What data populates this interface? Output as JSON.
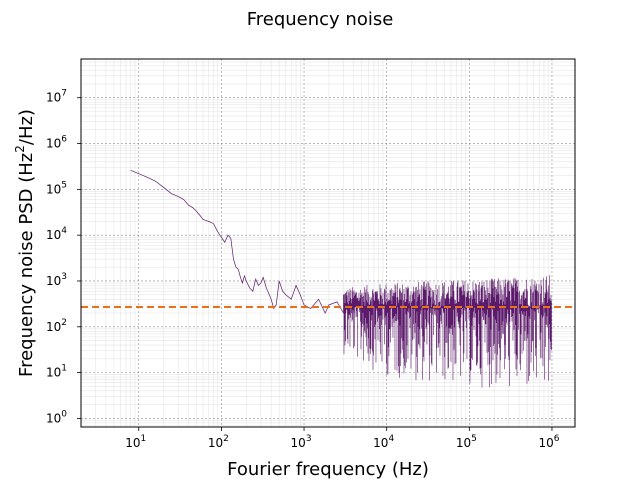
{
  "chart_data": {
    "type": "line",
    "title": "Frequency noise",
    "xlabel": "Fourier frequency (Hz)",
    "ylabel_main": "Frequency noise PSD (Hz",
    "ylabel_sup": "2",
    "ylabel_tail": "/Hz)",
    "xscale": "log",
    "yscale": "log",
    "xlim": [
      2.0,
      1900000
    ],
    "ylim": [
      0.65,
      70000000
    ],
    "grid": true,
    "x_ticks": [
      {
        "value": 10,
        "base": "10",
        "exp": "1"
      },
      {
        "value": 100,
        "base": "10",
        "exp": "2"
      },
      {
        "value": 1000,
        "base": "10",
        "exp": "3"
      },
      {
        "value": 10000,
        "base": "10",
        "exp": "4"
      },
      {
        "value": 100000,
        "base": "10",
        "exp": "5"
      },
      {
        "value": 1000000,
        "base": "10",
        "exp": "6"
      }
    ],
    "y_ticks": [
      {
        "value": 1,
        "base": "10",
        "exp": "0"
      },
      {
        "value": 10,
        "base": "10",
        "exp": "1"
      },
      {
        "value": 100,
        "base": "10",
        "exp": "2"
      },
      {
        "value": 1000,
        "base": "10",
        "exp": "3"
      },
      {
        "value": 10000,
        "base": "10",
        "exp": "4"
      },
      {
        "value": 100000,
        "base": "10",
        "exp": "5"
      },
      {
        "value": 1000000,
        "base": "10",
        "exp": "6"
      },
      {
        "value": 10000000,
        "base": "10",
        "exp": "7"
      }
    ],
    "series": [
      {
        "color": "#5c1a6b",
        "style": "solid",
        "x": [
          8,
          10,
          13,
          16,
          20,
          25,
          30,
          35,
          40,
          45,
          50,
          55,
          60,
          65,
          70,
          80,
          90,
          100,
          110,
          120,
          130,
          140,
          150,
          160,
          170,
          180,
          190,
          200,
          220,
          240,
          260,
          280,
          300,
          320,
          350,
          380,
          400,
          430,
          460,
          500,
          550,
          600,
          700,
          800,
          900,
          1000,
          1200,
          1500,
          1800,
          2000,
          2500,
          3000,
          3500
        ],
        "y": [
          260000,
          220000,
          180000,
          150000,
          110000,
          80000,
          70000,
          60000,
          45000,
          40000,
          33000,
          27000,
          22000,
          21000,
          20000,
          18000,
          12000,
          9000,
          7000,
          10000,
          8500,
          3000,
          2000,
          1800,
          1200,
          900,
          1300,
          1000,
          700,
          600,
          1100,
          800,
          900,
          1200,
          700,
          500,
          400,
          250,
          300,
          1000,
          600,
          500,
          400,
          800,
          500,
          300,
          250,
          400,
          200,
          300,
          350,
          200,
          300
        ]
      },
      {
        "color": "#5c1a6b",
        "style": "noise-band",
        "x": [
          3000,
          5000,
          10000,
          30000,
          100000,
          300000,
          1000000
        ],
        "y_upper": [
          700,
          800,
          900,
          1000,
          1100,
          1200,
          1400
        ],
        "y_center": [
          280,
          280,
          270,
          260,
          260,
          260,
          260
        ],
        "y_lower": [
          25,
          15,
          8,
          6,
          5,
          4,
          3
        ]
      },
      {
        "color": "#e8701a",
        "style": "dashed",
        "x": [
          2.0,
          1900000
        ],
        "y": [
          270,
          270
        ]
      }
    ]
  }
}
